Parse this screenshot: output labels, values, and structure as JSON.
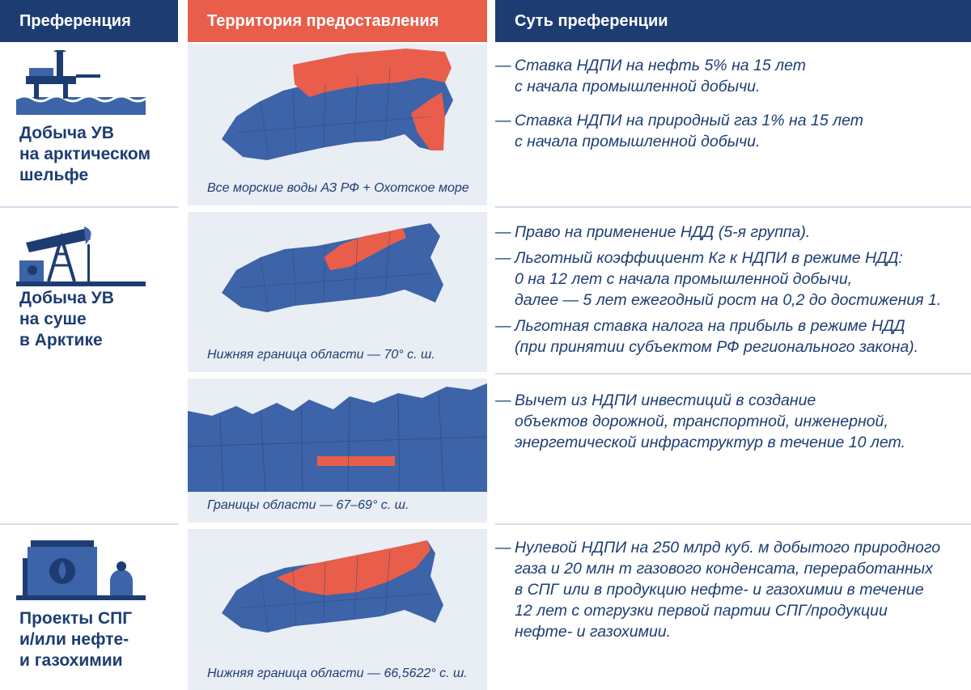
{
  "header": {
    "preference": "Преференция",
    "territory": "Территория предоставления",
    "essence": "Суть преференции"
  },
  "rows": [
    {
      "label": [
        "Добыча УВ",
        "на арктическом",
        "шельфе"
      ],
      "icon": "offshore-platform-icon",
      "caption": "Все морские воды АЗ РФ + Охотское море",
      "items": [
        [
          "Ставка НДПИ на нефть 5% на 15 лет",
          "с начала промышленной добычи."
        ],
        [
          "Ставка НДПИ на природный газ 1% на 15 лет",
          "с начала промышленной добычи."
        ]
      ]
    },
    {
      "label": [
        "Добыча УВ",
        "на суше",
        "в Арктике"
      ],
      "icon": "oil-pumpjack-icon",
      "caption": "Нижняя граница области — 70° с. ш.",
      "items": [
        [
          "Право на применение НДД (5-я группа)."
        ],
        [
          "Льготный коэффициент Кг к НДПИ в режиме НДД:",
          "0 на 12 лет с начала промышленной добычи,",
          "далее — 5 лет ежегодный рост на 0,2 до достижения 1."
        ],
        [
          "Льготная ставка налога на прибыль в режиме НДД",
          "(при принятии субъектом РФ регионального закона)."
        ]
      ]
    },
    {
      "caption": "Границы области — 67–69° с. ш.",
      "items": [
        [
          "Вычет из НДПИ инвестиций в создание",
          "объектов дорожной, транспортной, инженерной,",
          "энергетической инфраструктур в течение 10 лет."
        ]
      ]
    },
    {
      "label": [
        "Проекты СПГ",
        "и/или нефте-",
        "и газохимии"
      ],
      "icon": "lng-tank-icon",
      "caption": "Нижняя граница области — 66,5622° с. ш.",
      "items": [
        [
          "Нулевой НДПИ на 250 млрд куб. м добытого природного",
          "газа и 20 млн т газового конденсата, переработанных",
          "в СПГ или в продукцию нефте- и газохимии в течение",
          "12 лет с отгрузки первой партии СПГ/продукции",
          "нефте- и газохимии."
        ]
      ]
    }
  ],
  "colors": {
    "navy": "#1d3d72",
    "accent": "#e85e4b",
    "map": "#3d63a8",
    "panel": "#e9edf4"
  }
}
